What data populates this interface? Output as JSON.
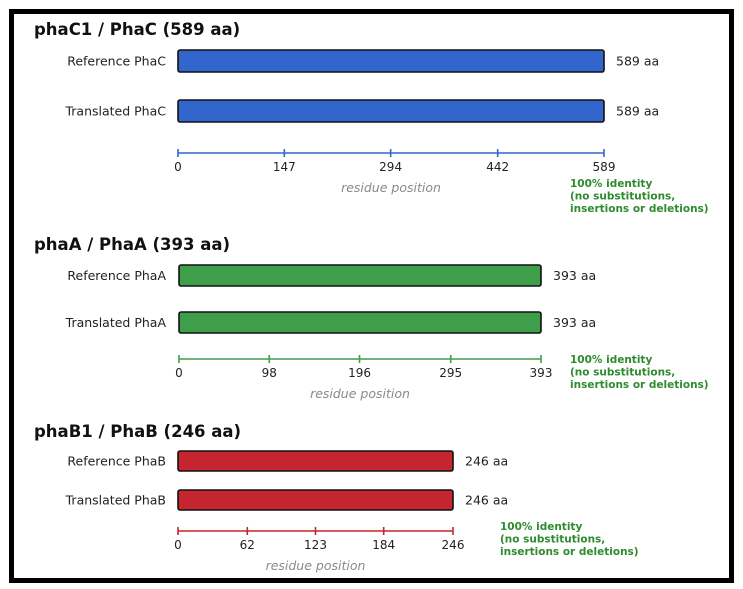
{
  "figure_title": "",
  "chart_data": [
    {
      "type": "bar",
      "title": "phaC1 / PhaC  (589 aa)",
      "categories": [
        "Reference PhaC",
        "Translated PhaC"
      ],
      "values": [
        589,
        589
      ],
      "value_labels": [
        "589 aa",
        "589 aa"
      ],
      "xlim": [
        0,
        589
      ],
      "ticks": [
        0,
        147,
        294,
        442,
        589
      ],
      "xlabel": "residue position",
      "color": "#3366cc",
      "note": [
        "100% identity",
        "(no substitutions,",
        "insertions or deletions)"
      ]
    },
    {
      "type": "bar",
      "title": "phaA  /  PhaA  (393 aa)",
      "categories": [
        "Reference PhaA",
        "Translated PhaA"
      ],
      "values": [
        393,
        393
      ],
      "value_labels": [
        "393 aa",
        "393 aa"
      ],
      "xlim": [
        0,
        393
      ],
      "ticks": [
        0,
        98,
        196,
        295,
        393
      ],
      "xlabel": "residue position",
      "color": "#3e9e4a",
      "note": [
        "100% identity",
        "(no substitutions,",
        "insertions or deletions)"
      ]
    },
    {
      "type": "bar",
      "title": "phaB1  /  PhaB  (246 aa)",
      "categories": [
        "Reference PhaB",
        "Translated PhaB"
      ],
      "values": [
        246,
        246
      ],
      "value_labels": [
        "246 aa",
        "246 aa"
      ],
      "xlim": [
        0,
        246
      ],
      "ticks": [
        0,
        62,
        123,
        184,
        246
      ],
      "xlabel": "residue position",
      "color": "#c4252f",
      "note": [
        "100% identity",
        "(no substitutions,",
        "insertions or deletions)"
      ]
    }
  ]
}
